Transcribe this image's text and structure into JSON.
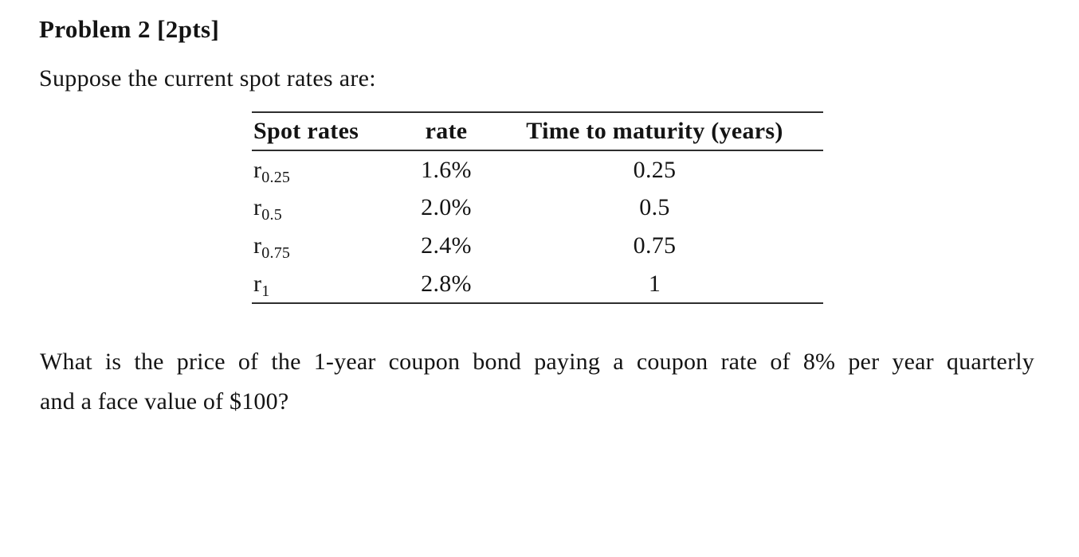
{
  "page": {
    "title": "Problem 2 [2pts]",
    "intro": "Suppose the current spot rates are:",
    "question_lines": [
      "What is the price of the 1-year coupon bond paying a coupon rate of 8% per year quarterly",
      "and a face value of $100?"
    ]
  },
  "table": {
    "headers": [
      "Spot rates",
      "rate",
      "Time to maturity (years)"
    ],
    "rows": [
      {
        "symbol": {
          "base": "r",
          "sub": "0.25"
        },
        "rate": "1.6%",
        "maturity": "0.25"
      },
      {
        "symbol": {
          "base": "r",
          "sub": "0.5"
        },
        "rate": "2.0%",
        "maturity": "0.5"
      },
      {
        "symbol": {
          "base": "r",
          "sub": "0.75"
        },
        "rate": "2.4%",
        "maturity": "0.75"
      },
      {
        "symbol": {
          "base": "r",
          "sub": "1"
        },
        "rate": "2.8%",
        "maturity": "1"
      }
    ]
  },
  "colors": {
    "text": "#141414",
    "rule": "#2e2e2e",
    "background": "#ffffff"
  }
}
